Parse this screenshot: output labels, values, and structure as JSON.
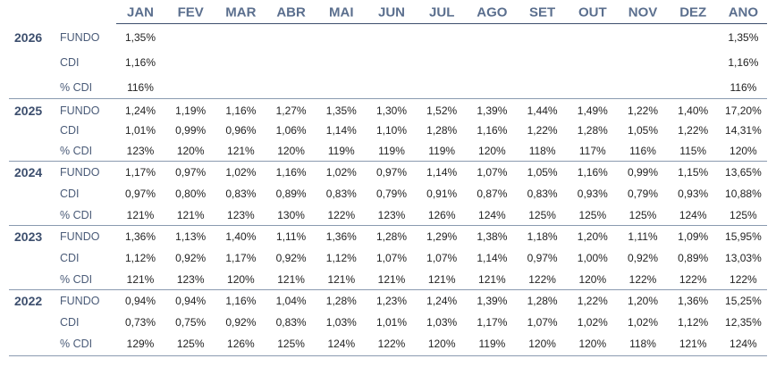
{
  "header": {
    "columns": [
      "JAN",
      "FEV",
      "MAR",
      "ABR",
      "MAI",
      "JUN",
      "JUL",
      "AGO",
      "SET",
      "OUT",
      "NOV",
      "DEZ",
      "ANO"
    ]
  },
  "groups": [
    {
      "year": "2026",
      "rows": [
        {
          "label": "FUNDO",
          "values": [
            "1,35%",
            null,
            null,
            null,
            null,
            null,
            null,
            null,
            null,
            null,
            null,
            null,
            "1,35%"
          ]
        },
        {
          "label": "CDI",
          "values": [
            "1,16%",
            null,
            null,
            null,
            null,
            null,
            null,
            null,
            null,
            null,
            null,
            null,
            "1,16%"
          ]
        },
        {
          "label": "% CDI",
          "values": [
            "116%",
            null,
            null,
            null,
            null,
            null,
            null,
            null,
            null,
            null,
            null,
            null,
            "116%"
          ]
        }
      ]
    },
    {
      "year": "2025",
      "rows": [
        {
          "label": "FUNDO",
          "values": [
            "1,24%",
            "1,19%",
            "1,16%",
            "1,27%",
            "1,35%",
            "1,30%",
            "1,52%",
            "1,39%",
            "1,44%",
            "1,49%",
            "1,22%",
            "1,40%",
            "17,20%"
          ]
        },
        {
          "label": "CDI",
          "values": [
            "1,01%",
            "0,99%",
            "0,96%",
            "1,06%",
            "1,14%",
            "1,10%",
            "1,28%",
            "1,16%",
            "1,22%",
            "1,28%",
            "1,05%",
            "1,22%",
            "14,31%"
          ]
        },
        {
          "label": "% CDI",
          "values": [
            "123%",
            "120%",
            "121%",
            "120%",
            "119%",
            "119%",
            "119%",
            "120%",
            "118%",
            "117%",
            "116%",
            "115%",
            "120%"
          ]
        }
      ]
    },
    {
      "year": "2024",
      "rows": [
        {
          "label": "FUNDO",
          "values": [
            "1,17%",
            "0,97%",
            "1,02%",
            "1,16%",
            "1,02%",
            "0,97%",
            "1,14%",
            "1,07%",
            "1,05%",
            "1,16%",
            "0,99%",
            "1,15%",
            "13,65%"
          ]
        },
        {
          "label": "CDI",
          "values": [
            "0,97%",
            "0,80%",
            "0,83%",
            "0,89%",
            "0,83%",
            "0,79%",
            "0,91%",
            "0,87%",
            "0,83%",
            "0,93%",
            "0,79%",
            "0,93%",
            "10,88%"
          ]
        },
        {
          "label": "% CDI",
          "values": [
            "121%",
            "121%",
            "123%",
            "130%",
            "122%",
            "123%",
            "126%",
            "124%",
            "125%",
            "125%",
            "125%",
            "124%",
            "125%"
          ]
        }
      ]
    },
    {
      "year": "2023",
      "rows": [
        {
          "label": "FUNDO",
          "values": [
            "1,36%",
            "1,13%",
            "1,40%",
            "1,11%",
            "1,36%",
            "1,28%",
            "1,29%",
            "1,38%",
            "1,18%",
            "1,20%",
            "1,11%",
            "1,09%",
            "15,95%"
          ]
        },
        {
          "label": "CDI",
          "values": [
            "1,12%",
            "0,92%",
            "1,17%",
            "0,92%",
            "1,12%",
            "1,07%",
            "1,07%",
            "1,14%",
            "0,97%",
            "1,00%",
            "0,92%",
            "0,89%",
            "13,03%"
          ]
        },
        {
          "label": "% CDI",
          "values": [
            "121%",
            "123%",
            "120%",
            "121%",
            "121%",
            "121%",
            "121%",
            "121%",
            "122%",
            "120%",
            "122%",
            "122%",
            "122%"
          ]
        }
      ]
    },
    {
      "year": "2022",
      "rows": [
        {
          "label": "FUNDO",
          "values": [
            "0,94%",
            "0,94%",
            "1,16%",
            "1,04%",
            "1,28%",
            "1,23%",
            "1,24%",
            "1,39%",
            "1,28%",
            "1,22%",
            "1,20%",
            "1,36%",
            "15,25%"
          ]
        },
        {
          "label": "CDI",
          "values": [
            "0,73%",
            "0,75%",
            "0,92%",
            "0,83%",
            "1,03%",
            "1,01%",
            "1,03%",
            "1,17%",
            "1,07%",
            "1,02%",
            "1,02%",
            "1,12%",
            "12,35%"
          ]
        },
        {
          "label": "% CDI",
          "values": [
            "129%",
            "125%",
            "126%",
            "125%",
            "124%",
            "122%",
            "120%",
            "119%",
            "120%",
            "120%",
            "118%",
            "121%",
            "124%"
          ]
        }
      ]
    }
  ]
}
